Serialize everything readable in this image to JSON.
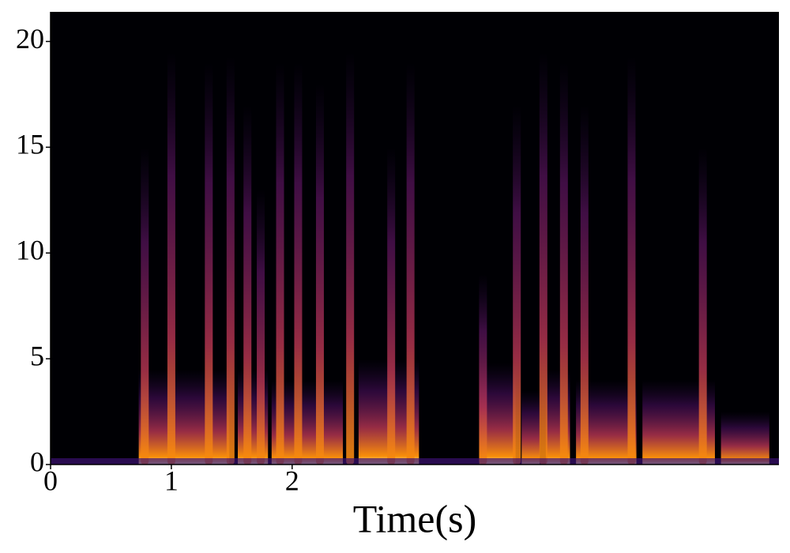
{
  "chart_data": {
    "type": "spectrogram",
    "xlabel": "Time(s)",
    "xlim": [
      0,
      6.03
    ],
    "xticks": [
      0,
      1,
      2
    ],
    "ylim": [
      0,
      21.4
    ],
    "yticks": [
      0,
      5,
      10,
      15,
      20
    ],
    "streaks": [
      {
        "time": 0.78,
        "top": 15
      },
      {
        "time": 1.0,
        "top": 19.5
      },
      {
        "time": 1.31,
        "top": 19
      },
      {
        "time": 1.49,
        "top": 19.3
      },
      {
        "time": 1.63,
        "top": 17
      },
      {
        "time": 1.74,
        "top": 13
      },
      {
        "time": 1.9,
        "top": 19
      },
      {
        "time": 2.05,
        "top": 19
      },
      {
        "time": 2.23,
        "top": 18
      },
      {
        "time": 2.48,
        "top": 19.5
      },
      {
        "time": 2.82,
        "top": 15
      },
      {
        "time": 2.98,
        "top": 19
      },
      {
        "time": 3.58,
        "top": 9
      },
      {
        "time": 3.86,
        "top": 17
      },
      {
        "time": 4.08,
        "top": 19.5
      },
      {
        "time": 4.25,
        "top": 19
      },
      {
        "time": 4.42,
        "top": 17
      },
      {
        "time": 4.81,
        "top": 19.3
      },
      {
        "time": 5.4,
        "top": 15
      }
    ],
    "segments": [
      {
        "start": 0.73,
        "end": 1.48,
        "top": 4.5
      },
      {
        "start": 1.55,
        "end": 1.8,
        "top": 4.5
      },
      {
        "start": 1.83,
        "end": 2.42,
        "top": 4
      },
      {
        "start": 2.55,
        "end": 3.05,
        "top": 5
      },
      {
        "start": 3.55,
        "end": 3.85,
        "top": 4.8
      },
      {
        "start": 3.9,
        "end": 4.05,
        "top": 3.5
      },
      {
        "start": 4.1,
        "end": 4.3,
        "top": 4.5
      },
      {
        "start": 4.35,
        "end": 4.85,
        "top": 4
      },
      {
        "start": 4.9,
        "end": 5.5,
        "top": 4
      },
      {
        "start": 5.55,
        "end": 5.95,
        "top": 2.5
      }
    ]
  }
}
